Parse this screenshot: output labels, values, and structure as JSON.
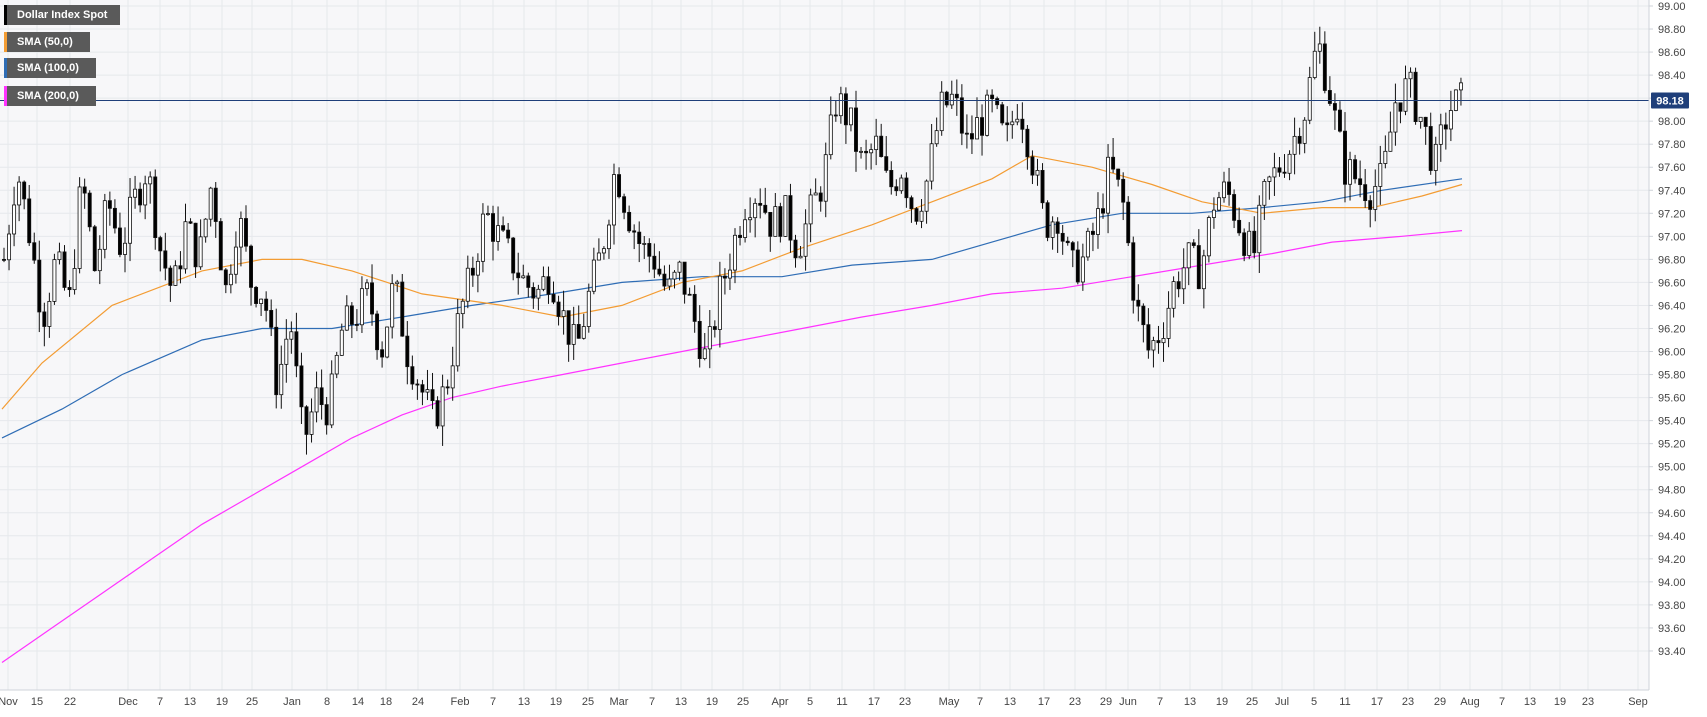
{
  "chart_data": {
    "type": "candlestick",
    "instrument": "Dollar Index Spot",
    "legend": [
      {
        "label": "Dollar Index Spot",
        "color": "#000000"
      },
      {
        "label": "SMA (50,0)",
        "color": "#f39c33"
      },
      {
        "label": "SMA (100,0)",
        "color": "#2f6db5"
      },
      {
        "label": "SMA (200,0)",
        "color": "#ff33ff"
      }
    ],
    "last_price": {
      "value": 98.18,
      "label": "98.18"
    },
    "ylim": [
      93.2,
      99.0
    ],
    "yticks": [
      "99.00",
      "98.80",
      "98.60",
      "98.40",
      "98.20",
      "98.00",
      "97.80",
      "97.60",
      "97.40",
      "97.20",
      "97.00",
      "96.80",
      "96.60",
      "96.40",
      "96.20",
      "96.00",
      "95.80",
      "95.60",
      "95.40",
      "95.20",
      "95.00",
      "94.80",
      "94.60",
      "94.40",
      "94.20",
      "94.00",
      "93.80",
      "93.60",
      "93.40"
    ],
    "xticks": [
      "Nov",
      "15",
      "22",
      "Dec",
      "7",
      "13",
      "19",
      "25",
      "Jan",
      "8",
      "14",
      "18",
      "24",
      "Feb",
      "7",
      "13",
      "19",
      "25",
      "Mar",
      "7",
      "13",
      "19",
      "25",
      "Apr",
      "5",
      "11",
      "17",
      "23",
      "May",
      "7",
      "13",
      "17",
      "23",
      "29",
      "Jun",
      "7",
      "13",
      "19",
      "25",
      "Jul",
      "5",
      "11",
      "17",
      "23",
      "29",
      "Aug",
      "7",
      "13",
      "19",
      "23",
      "Sep"
    ],
    "grid": true,
    "price_path": [
      96.8,
      97.6,
      97.0,
      96.3,
      96.8,
      96.4,
      97.5,
      96.7,
      97.3,
      96.9,
      97.3,
      97.6,
      96.9,
      96.5,
      97.1,
      96.8,
      97.5,
      96.5,
      97.2,
      96.6,
      96.5,
      95.7,
      96.3,
      95.2,
      95.6,
      95.5,
      96.2,
      96.3,
      96.5,
      96.0,
      96.6,
      96.0,
      95.7,
      95.4,
      95.7,
      96.3,
      96.7,
      97.2,
      97.0,
      96.8,
      96.6,
      96.5,
      96.7,
      96.3,
      96.0,
      96.5,
      96.9,
      97.6,
      97.2,
      96.9,
      96.8,
      96.5,
      96.7,
      96.3,
      95.9,
      96.5,
      96.9,
      97.3,
      97.4,
      97.1,
      97.2,
      96.9,
      97.2,
      97.5,
      98.2,
      98.0,
      97.6,
      97.8,
      97.4,
      97.6,
      97.2,
      97.5,
      98.1,
      98.2,
      97.8,
      98.0,
      98.1,
      97.8,
      98.2,
      97.7,
      97.1,
      97.2,
      96.7,
      96.8,
      97.1,
      97.6,
      97.3,
      96.4,
      96.0,
      96.2,
      96.6,
      96.8,
      96.7,
      97.3,
      97.4,
      97.1,
      96.8,
      97.4,
      97.6,
      97.8,
      98.1,
      98.7,
      98.2,
      97.6,
      97.5,
      97.4,
      97.5,
      98.2,
      98.3,
      98.0,
      97.6,
      98.1,
      98.18
    ],
    "sma50": [
      [
        0,
        95.5
      ],
      [
        40,
        95.9
      ],
      [
        110,
        96.4
      ],
      [
        200,
        96.7
      ],
      [
        260,
        96.8
      ],
      [
        300,
        96.8
      ],
      [
        350,
        96.7
      ],
      [
        420,
        96.5
      ],
      [
        500,
        96.4
      ],
      [
        560,
        96.3
      ],
      [
        620,
        96.4
      ],
      [
        680,
        96.6
      ],
      [
        740,
        96.7
      ],
      [
        800,
        96.9
      ],
      [
        870,
        97.1
      ],
      [
        930,
        97.3
      ],
      [
        990,
        97.5
      ],
      [
        1030,
        97.7
      ],
      [
        1090,
        97.6
      ],
      [
        1150,
        97.45
      ],
      [
        1200,
        97.3
      ],
      [
        1260,
        97.2
      ],
      [
        1320,
        97.25
      ],
      [
        1370,
        97.25
      ],
      [
        1420,
        97.35
      ],
      [
        1460,
        97.45
      ]
    ],
    "sma100": [
      [
        0,
        95.25
      ],
      [
        60,
        95.5
      ],
      [
        120,
        95.8
      ],
      [
        200,
        96.1
      ],
      [
        260,
        96.2
      ],
      [
        330,
        96.2
      ],
      [
        400,
        96.3
      ],
      [
        470,
        96.4
      ],
      [
        550,
        96.5
      ],
      [
        620,
        96.6
      ],
      [
        700,
        96.65
      ],
      [
        780,
        96.65
      ],
      [
        850,
        96.75
      ],
      [
        930,
        96.8
      ],
      [
        990,
        96.95
      ],
      [
        1050,
        97.1
      ],
      [
        1120,
        97.2
      ],
      [
        1190,
        97.2
      ],
      [
        1260,
        97.25
      ],
      [
        1320,
        97.3
      ],
      [
        1380,
        97.4
      ],
      [
        1460,
        97.5
      ]
    ],
    "sma200": [
      [
        0,
        93.3
      ],
      [
        50,
        93.6
      ],
      [
        100,
        93.9
      ],
      [
        150,
        94.2
      ],
      [
        200,
        94.5
      ],
      [
        250,
        94.75
      ],
      [
        300,
        95.0
      ],
      [
        350,
        95.25
      ],
      [
        400,
        95.45
      ],
      [
        450,
        95.6
      ],
      [
        500,
        95.7
      ],
      [
        560,
        95.8
      ],
      [
        620,
        95.9
      ],
      [
        680,
        96.0
      ],
      [
        740,
        96.1
      ],
      [
        800,
        96.2
      ],
      [
        860,
        96.3
      ],
      [
        930,
        96.4
      ],
      [
        990,
        96.5
      ],
      [
        1060,
        96.55
      ],
      [
        1130,
        96.65
      ],
      [
        1200,
        96.75
      ],
      [
        1270,
        96.85
      ],
      [
        1330,
        96.95
      ],
      [
        1400,
        97.0
      ],
      [
        1460,
        97.05
      ]
    ]
  }
}
